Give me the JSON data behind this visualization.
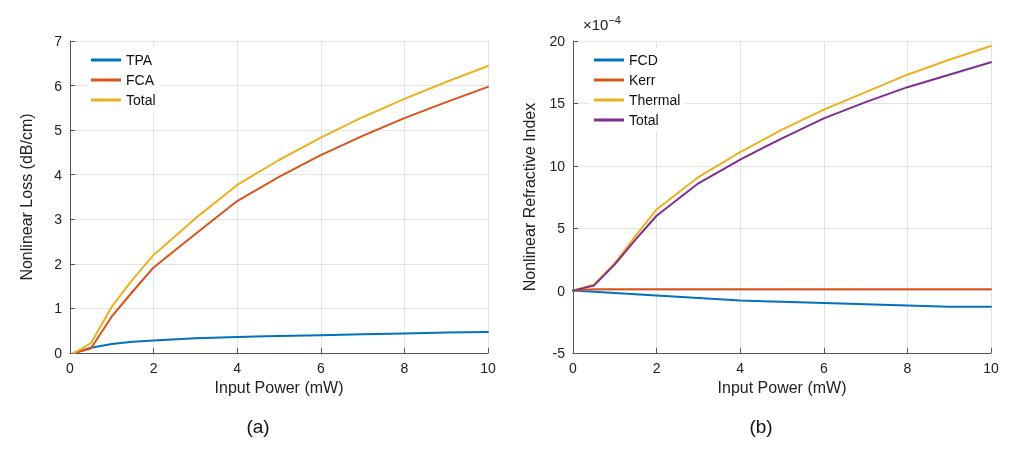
{
  "chart_data": [
    {
      "type": "line",
      "title": "(a)",
      "xlabel": "Input Power (mW)",
      "ylabel": "Nonlinear Loss (dB/cm)",
      "x": [
        0.1,
        0.5,
        1,
        1.5,
        2,
        3,
        4,
        5,
        6,
        7,
        8,
        9,
        10
      ],
      "series": [
        {
          "name": "TPA",
          "color": "#0072bd",
          "values": [
            0,
            0.12,
            0.2,
            0.25,
            0.28,
            0.33,
            0.36,
            0.38,
            0.4,
            0.42,
            0.44,
            0.46,
            0.47
          ]
        },
        {
          "name": "FCA",
          "color": "#d95319",
          "values": [
            0,
            0.1,
            0.82,
            1.38,
            1.92,
            2.67,
            3.41,
            3.95,
            4.44,
            4.87,
            5.27,
            5.63,
            5.97
          ]
        },
        {
          "name": "Total",
          "color": "#edb120",
          "values": [
            0,
            0.22,
            1.04,
            1.65,
            2.2,
            3.02,
            3.77,
            4.33,
            4.83,
            5.29,
            5.7,
            6.08,
            6.44
          ]
        }
      ],
      "xlim": [
        0,
        10
      ],
      "xticks": [
        0,
        2,
        4,
        6,
        8,
        10
      ],
      "ylim": [
        0,
        7
      ],
      "yticks": [
        0,
        1,
        2,
        3,
        4,
        5,
        6,
        7
      ],
      "grid": true,
      "legend": "top left",
      "marker": "none",
      "line_style": "solid"
    },
    {
      "type": "line",
      "title": "(b)",
      "xlabel": "Input Power (mW)",
      "ylabel": "Nonlinear Refractive Index",
      "annotations": [
        "×10$^{−4}$"
      ],
      "x": [
        0,
        0.5,
        1,
        1.5,
        2,
        3,
        4,
        5,
        6,
        7,
        8,
        9,
        10
      ],
      "series": [
        {
          "name": "FCD",
          "color": "#0072bd",
          "values": [
            0,
            -0.1,
            -0.2,
            -0.3,
            -0.4,
            -0.6,
            -0.8,
            -0.9,
            -1,
            -1.1,
            -1.2,
            -1.3,
            -1.3
          ]
        },
        {
          "name": "Kerr",
          "color": "#d95319",
          "values": [
            0,
            0.1,
            0.1,
            0.1,
            0.1,
            0.1,
            0.1,
            0.1,
            0.1,
            0.1,
            0.1,
            0.1,
            0.1
          ]
        },
        {
          "name": "Thermal",
          "color": "#edb120",
          "values": [
            0,
            0.5,
            2.2,
            4.4,
            6.5,
            9.1,
            11.1,
            12.9,
            14.5,
            15.9,
            17.3,
            18.5,
            19.6
          ]
        },
        {
          "name": "Total",
          "color": "#7e2f8e",
          "values": [
            0,
            0.4,
            2.1,
            4.1,
            6,
            8.6,
            10.5,
            12.2,
            13.8,
            15.1,
            16.3,
            17.3,
            18.3
          ]
        }
      ],
      "xlim": [
        0,
        10
      ],
      "xticks": [
        0,
        2,
        4,
        6,
        8,
        10
      ],
      "ylim": [
        -5,
        20
      ],
      "yticks": [
        -5,
        0,
        5,
        10,
        15,
        20
      ],
      "grid": true,
      "legend": "top left",
      "marker": "none",
      "line_style": "solid"
    }
  ]
}
